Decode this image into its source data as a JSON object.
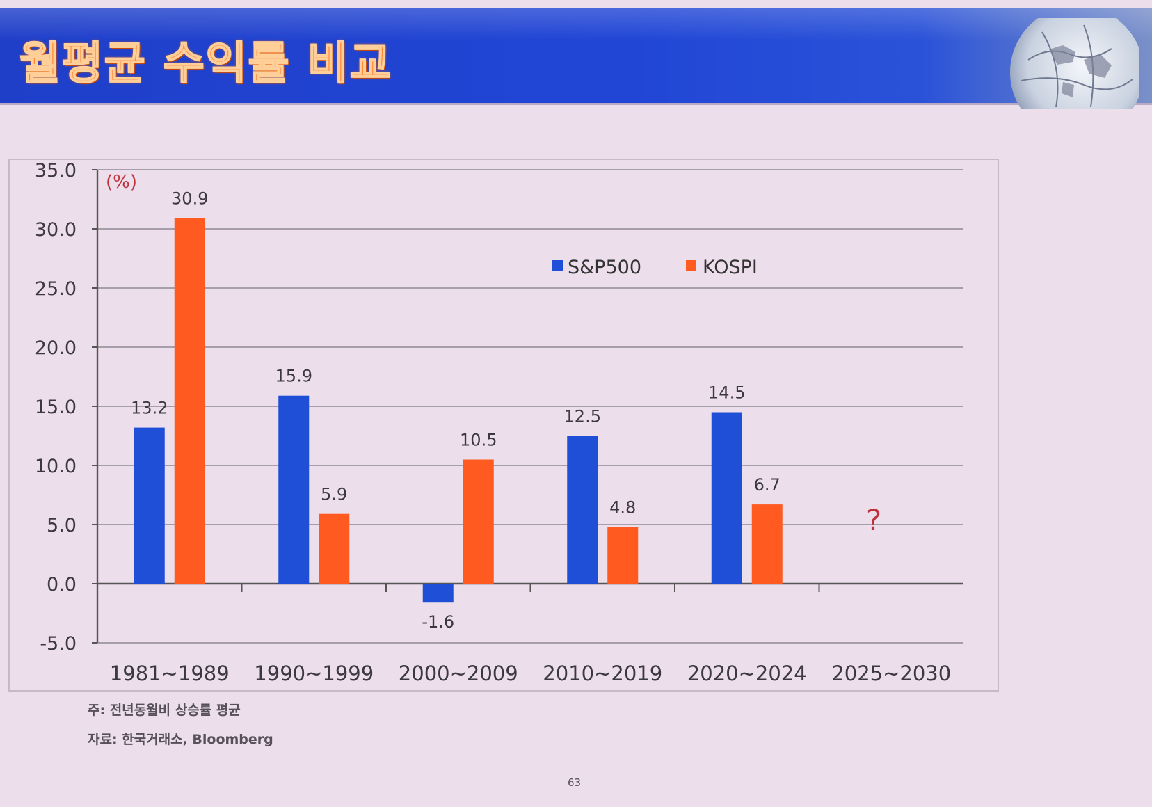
{
  "slide": {
    "title": "월평균 수익률 비교",
    "page_number": "63",
    "footnote_note": "주: 전년동월비 상승률 평균",
    "footnote_source": "자료: 한국거래소, Bloomberg"
  },
  "colors": {
    "sp500": "#1f4fd6",
    "kospi": "#ff5a1f",
    "background": "#ecdeea",
    "unit_label": "#c0303a",
    "question_mark": "#c0303a"
  },
  "chart_data": {
    "type": "bar",
    "categories": [
      "1981~1989",
      "1990~1999",
      "2000~2009",
      "2010~2019",
      "2020~2024",
      "2025~2030"
    ],
    "series": [
      {
        "name": "S&P500",
        "values": [
          13.2,
          15.9,
          -1.6,
          12.5,
          14.5,
          null
        ]
      },
      {
        "name": "KOSPI",
        "values": [
          30.9,
          5.9,
          10.5,
          4.8,
          6.7,
          null
        ]
      }
    ],
    "data_labels": {
      "S&P500": [
        "13.2",
        "15.9",
        "-1.6",
        "12.5",
        "14.5",
        ""
      ],
      "KOSPI": [
        "30.9",
        "5.9",
        "10.5",
        "4.8",
        "6.7",
        ""
      ]
    },
    "unit_label": "(%)",
    "ylim": [
      -5,
      35
    ],
    "yticks": [
      35,
      30,
      25,
      20,
      15,
      10,
      5,
      0,
      -5
    ],
    "ytick_labels": [
      "35.0",
      "30.0",
      "25.0",
      "20.0",
      "15.0",
      "10.0",
      "5.0",
      "0.0",
      "-5.0"
    ],
    "grid": true,
    "legend_position": "top-center",
    "annotation": {
      "text": "?",
      "category": "2025~2030"
    }
  }
}
